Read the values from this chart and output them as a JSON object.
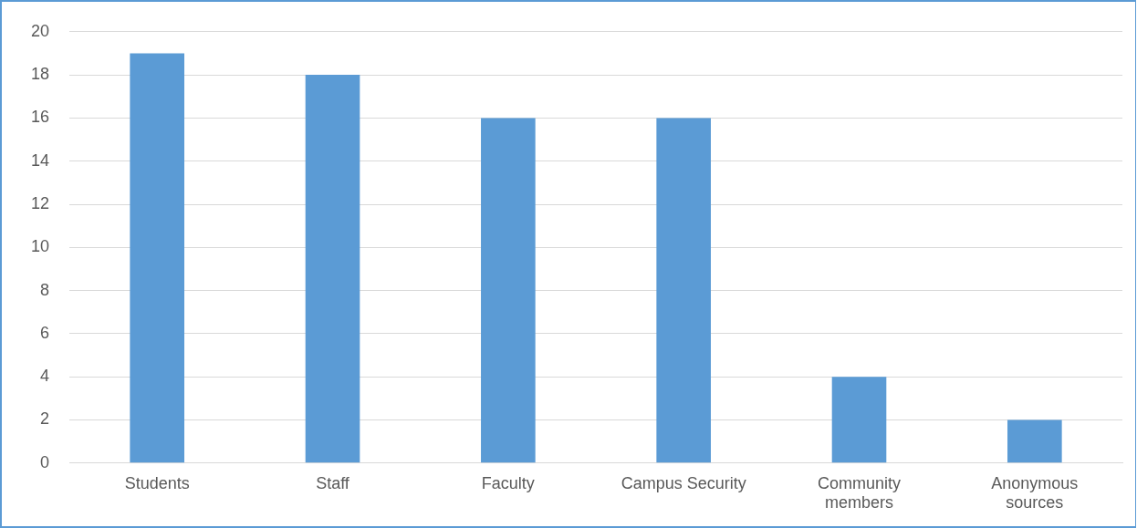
{
  "chart_data": {
    "type": "bar",
    "categories": [
      "Students",
      "Staff",
      "Faculty",
      "Campus Security",
      "Community members",
      "Anonymous sources"
    ],
    "values": [
      19,
      18,
      16,
      16,
      4,
      2
    ],
    "color": "#5b9bd5",
    "ylim": [
      0,
      20
    ],
    "yticks": [
      0,
      2,
      4,
      6,
      8,
      10,
      12,
      14,
      16,
      18,
      20
    ],
    "grid": "y",
    "legend": false
  }
}
